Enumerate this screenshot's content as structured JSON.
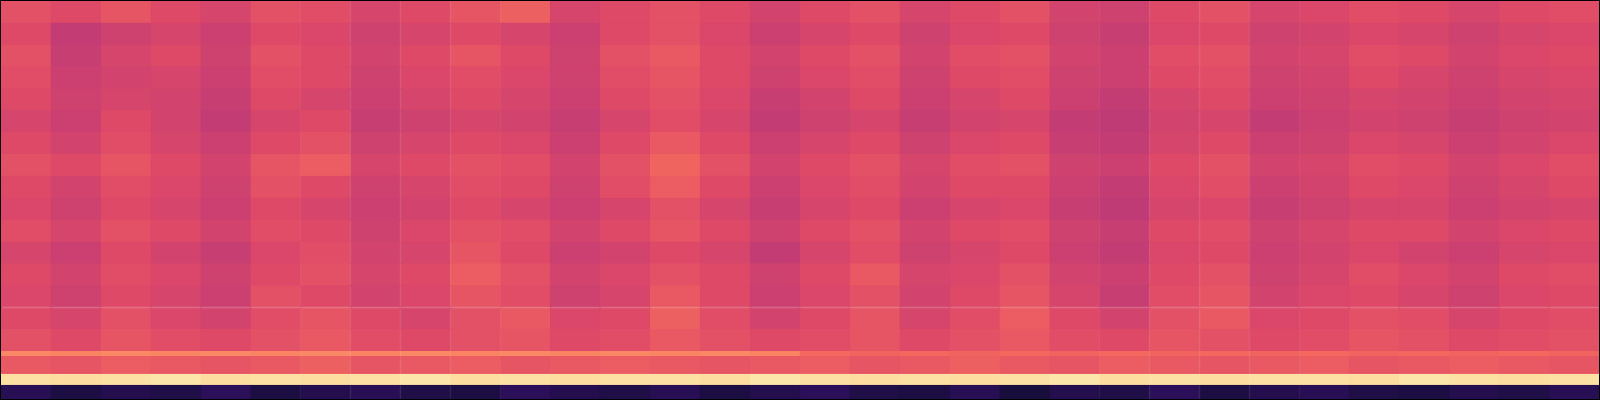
{
  "chart_data": {
    "type": "heatmap",
    "tick_labels": false,
    "grid": false,
    "xlim": [
      0,
      32
    ],
    "ylim": [
      0,
      400
    ],
    "zlim": [
      0,
      1
    ],
    "x_bins": [
      0,
      1,
      2,
      3,
      4,
      5,
      6,
      7,
      8,
      9,
      10,
      11,
      12,
      13,
      14,
      15,
      16,
      17,
      18,
      19,
      20,
      21,
      22,
      23,
      24,
      25,
      26,
      27,
      28,
      29,
      30,
      31,
      32
    ],
    "y_bins": [
      0,
      14,
      25,
      43,
      48,
      70,
      92,
      114,
      136,
      158,
      180,
      202,
      224,
      246,
      268,
      290,
      312,
      334,
      356,
      378,
      400
    ],
    "cells": [
      [
        0.15,
        0.12,
        0.14,
        0.13,
        0.16,
        0.12,
        0.14,
        0.15,
        0.13,
        0.12,
        0.16,
        0.14,
        0.13,
        0.15,
        0.12,
        0.14,
        0.16,
        0.13,
        0.12,
        0.15,
        0.11,
        0.14,
        0.13,
        0.16,
        0.12,
        0.14,
        0.15,
        0.13,
        0.12,
        0.14,
        0.13,
        0.15
      ],
      [
        0.94,
        0.93,
        0.94,
        0.95,
        0.93,
        0.94,
        0.93,
        0.94,
        0.95,
        0.93,
        0.94,
        0.93,
        0.94,
        0.94,
        0.93,
        0.95,
        0.94,
        0.93,
        0.94,
        0.93,
        0.94,
        0.95,
        0.93,
        0.94,
        0.93,
        0.94,
        0.94,
        0.93,
        0.95,
        0.94,
        0.93,
        0.94
      ],
      [
        0.64,
        0.63,
        0.65,
        0.64,
        0.63,
        0.64,
        0.66,
        0.63,
        0.64,
        0.65,
        0.63,
        0.64,
        0.65,
        0.64,
        0.63,
        0.64,
        0.65,
        0.63,
        0.64,
        0.66,
        0.64,
        0.63,
        0.65,
        0.64,
        0.63,
        0.64,
        0.65,
        0.63,
        0.64,
        0.65,
        0.64,
        0.63
      ],
      [
        0.75,
        0.74,
        0.75,
        0.74,
        0.75,
        0.74,
        0.75,
        0.74,
        0.75,
        0.74,
        0.75,
        0.74,
        0.75,
        0.74,
        0.75,
        0.74,
        0.68,
        0.67,
        0.68,
        0.67,
        0.68,
        0.67,
        0.68,
        0.67,
        0.68,
        0.67,
        0.68,
        0.67,
        0.68,
        0.67,
        0.68,
        0.67
      ],
      [
        0.62,
        0.6,
        0.63,
        0.61,
        0.6,
        0.62,
        0.64,
        0.61,
        0.6,
        0.62,
        0.63,
        0.6,
        0.61,
        0.64,
        0.62,
        0.6,
        0.61,
        0.63,
        0.6,
        0.62,
        0.64,
        0.61,
        0.6,
        0.63,
        0.62,
        0.6,
        0.61,
        0.63,
        0.62,
        0.6,
        0.61,
        0.62
      ],
      [
        0.6,
        0.58,
        0.62,
        0.59,
        0.57,
        0.61,
        0.63,
        0.6,
        0.58,
        0.62,
        0.64,
        0.59,
        0.6,
        0.66,
        0.61,
        0.57,
        0.6,
        0.63,
        0.58,
        0.61,
        0.65,
        0.6,
        0.57,
        0.62,
        0.64,
        0.59,
        0.6,
        0.62,
        0.61,
        0.58,
        0.6,
        0.61
      ],
      [
        0.59,
        0.56,
        0.6,
        0.58,
        0.55,
        0.62,
        0.6,
        0.57,
        0.59,
        0.63,
        0.61,
        0.56,
        0.58,
        0.64,
        0.6,
        0.55,
        0.59,
        0.62,
        0.57,
        0.6,
        0.63,
        0.58,
        0.54,
        0.61,
        0.63,
        0.57,
        0.59,
        0.6,
        0.58,
        0.56,
        0.59,
        0.6
      ],
      [
        0.6,
        0.57,
        0.61,
        0.59,
        0.56,
        0.6,
        0.62,
        0.58,
        0.6,
        0.65,
        0.62,
        0.57,
        0.59,
        0.62,
        0.6,
        0.56,
        0.6,
        0.64,
        0.58,
        0.59,
        0.62,
        0.57,
        0.55,
        0.6,
        0.62,
        0.56,
        0.58,
        0.61,
        0.59,
        0.57,
        0.6,
        0.61
      ],
      [
        0.58,
        0.55,
        0.6,
        0.57,
        0.54,
        0.59,
        0.61,
        0.57,
        0.58,
        0.63,
        0.6,
        0.55,
        0.57,
        0.6,
        0.58,
        0.53,
        0.58,
        0.61,
        0.56,
        0.58,
        0.6,
        0.55,
        0.53,
        0.59,
        0.6,
        0.55,
        0.57,
        0.59,
        0.57,
        0.55,
        0.58,
        0.59
      ],
      [
        0.61,
        0.58,
        0.62,
        0.6,
        0.57,
        0.61,
        0.6,
        0.56,
        0.59,
        0.62,
        0.61,
        0.57,
        0.6,
        0.63,
        0.6,
        0.56,
        0.6,
        0.62,
        0.57,
        0.6,
        0.61,
        0.56,
        0.54,
        0.6,
        0.61,
        0.56,
        0.58,
        0.6,
        0.6,
        0.57,
        0.59,
        0.6
      ],
      [
        0.59,
        0.56,
        0.6,
        0.58,
        0.55,
        0.6,
        0.58,
        0.55,
        0.57,
        0.6,
        0.58,
        0.55,
        0.58,
        0.62,
        0.58,
        0.54,
        0.58,
        0.6,
        0.55,
        0.58,
        0.59,
        0.54,
        0.52,
        0.58,
        0.59,
        0.54,
        0.56,
        0.58,
        0.58,
        0.55,
        0.57,
        0.58
      ],
      [
        0.6,
        0.57,
        0.61,
        0.59,
        0.56,
        0.62,
        0.6,
        0.56,
        0.58,
        0.61,
        0.6,
        0.56,
        0.61,
        0.65,
        0.6,
        0.55,
        0.59,
        0.61,
        0.57,
        0.6,
        0.6,
        0.55,
        0.53,
        0.59,
        0.61,
        0.55,
        0.57,
        0.6,
        0.59,
        0.56,
        0.58,
        0.6
      ],
      [
        0.62,
        0.6,
        0.63,
        0.6,
        0.57,
        0.63,
        0.65,
        0.58,
        0.6,
        0.62,
        0.61,
        0.57,
        0.62,
        0.67,
        0.62,
        0.57,
        0.6,
        0.62,
        0.58,
        0.61,
        0.62,
        0.56,
        0.55,
        0.6,
        0.62,
        0.57,
        0.58,
        0.61,
        0.6,
        0.57,
        0.59,
        0.61
      ],
      [
        0.6,
        0.57,
        0.61,
        0.58,
        0.55,
        0.6,
        0.62,
        0.56,
        0.58,
        0.6,
        0.59,
        0.55,
        0.6,
        0.64,
        0.6,
        0.55,
        0.58,
        0.6,
        0.56,
        0.59,
        0.6,
        0.54,
        0.53,
        0.58,
        0.6,
        0.55,
        0.56,
        0.59,
        0.58,
        0.55,
        0.57,
        0.59
      ],
      [
        0.58,
        0.55,
        0.6,
        0.57,
        0.53,
        0.58,
        0.6,
        0.54,
        0.56,
        0.58,
        0.57,
        0.54,
        0.58,
        0.61,
        0.58,
        0.53,
        0.56,
        0.58,
        0.54,
        0.57,
        0.58,
        0.53,
        0.52,
        0.57,
        0.58,
        0.53,
        0.55,
        0.57,
        0.56,
        0.54,
        0.56,
        0.57
      ],
      [
        0.6,
        0.56,
        0.58,
        0.57,
        0.54,
        0.6,
        0.58,
        0.55,
        0.58,
        0.6,
        0.58,
        0.55,
        0.6,
        0.62,
        0.59,
        0.54,
        0.57,
        0.6,
        0.55,
        0.58,
        0.6,
        0.55,
        0.53,
        0.58,
        0.6,
        0.55,
        0.56,
        0.58,
        0.57,
        0.55,
        0.57,
        0.58
      ],
      [
        0.61,
        0.55,
        0.57,
        0.58,
        0.55,
        0.61,
        0.6,
        0.56,
        0.59,
        0.61,
        0.59,
        0.56,
        0.61,
        0.63,
        0.6,
        0.56,
        0.59,
        0.61,
        0.56,
        0.6,
        0.61,
        0.56,
        0.55,
        0.6,
        0.61,
        0.56,
        0.57,
        0.6,
        0.58,
        0.56,
        0.58,
        0.59
      ],
      [
        0.62,
        0.54,
        0.58,
        0.6,
        0.56,
        0.62,
        0.6,
        0.57,
        0.6,
        0.63,
        0.6,
        0.56,
        0.62,
        0.64,
        0.6,
        0.57,
        0.6,
        0.62,
        0.57,
        0.61,
        0.62,
        0.57,
        0.55,
        0.61,
        0.62,
        0.57,
        0.58,
        0.61,
        0.6,
        0.57,
        0.59,
        0.6
      ],
      [
        0.6,
        0.53,
        0.56,
        0.58,
        0.55,
        0.6,
        0.59,
        0.56,
        0.58,
        0.6,
        0.58,
        0.55,
        0.6,
        0.62,
        0.59,
        0.55,
        0.58,
        0.6,
        0.56,
        0.59,
        0.6,
        0.56,
        0.54,
        0.59,
        0.6,
        0.56,
        0.57,
        0.59,
        0.58,
        0.56,
        0.58,
        0.59
      ],
      [
        0.62,
        0.6,
        0.63,
        0.6,
        0.58,
        0.62,
        0.61,
        0.58,
        0.6,
        0.63,
        0.66,
        0.58,
        0.6,
        0.62,
        0.6,
        0.57,
        0.6,
        0.62,
        0.58,
        0.6,
        0.62,
        0.57,
        0.56,
        0.6,
        0.62,
        0.58,
        0.59,
        0.61,
        0.6,
        0.58,
        0.6,
        0.61
      ]
    ]
  }
}
